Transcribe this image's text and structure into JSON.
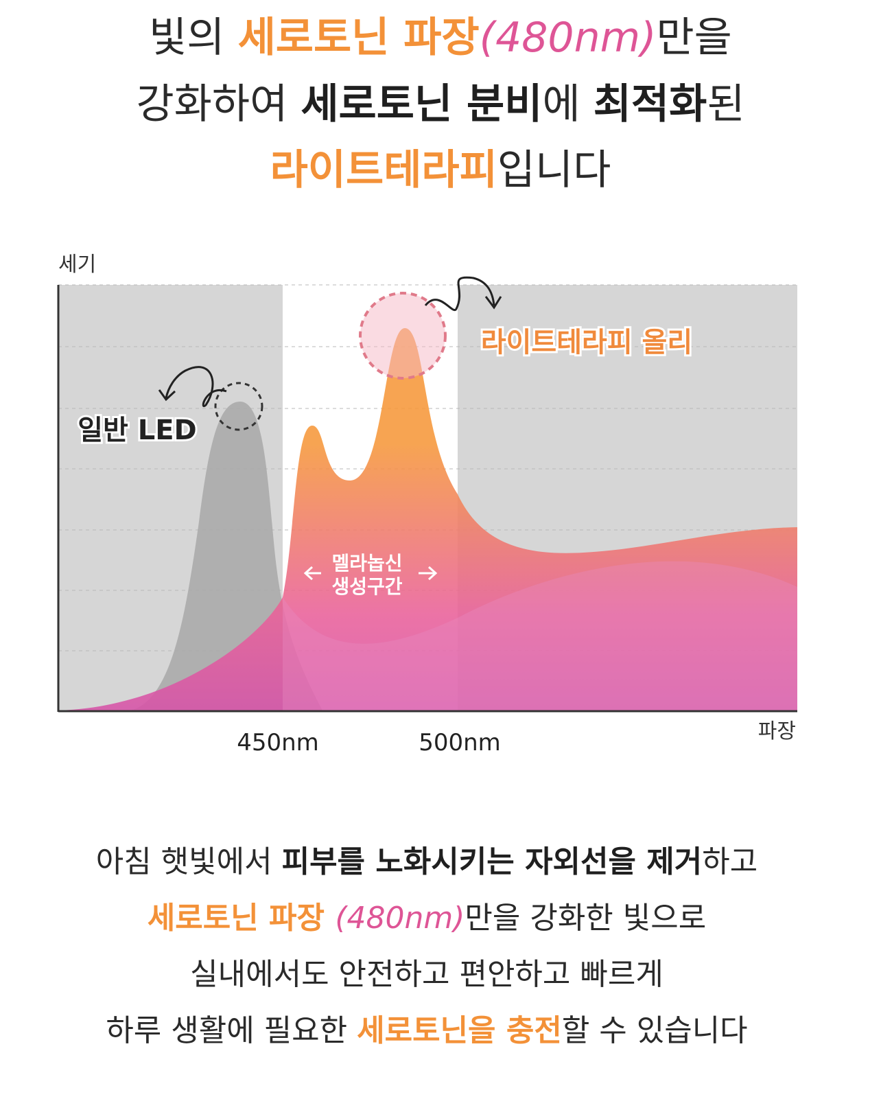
{
  "headline": [
    [
      "빛의 ",
      "세로토닌 파장",
      "(480nm)",
      "만을"
    ],
    [
      "강화하여 ",
      "세로토닌 분비",
      "에 ",
      "최적화",
      "된"
    ],
    [
      "라이트테라피",
      "입니다"
    ]
  ],
  "diagram": {
    "y_label": "세기",
    "x_label": "파장",
    "x_ticks": [
      "450nm",
      "500nm"
    ],
    "led_label": "일반 LED",
    "product_label": "라이트테라피 올리",
    "zone_label": [
      "멜라놉신",
      "생성구간"
    ]
  },
  "body": [
    [
      "아침 햇빛에서 ",
      "피부를 노화시키는 자외선을 제거",
      "하고"
    ],
    [
      "세로토닌 파장 ",
      "(480nm)",
      "만을 강화한 빛으로"
    ],
    [
      "실내에서도 안전하고 편안하고 빠르게"
    ],
    [
      "하루 생활에 필요한 ",
      "세로토닌을 충전",
      "할 수 있습니다"
    ]
  ]
}
